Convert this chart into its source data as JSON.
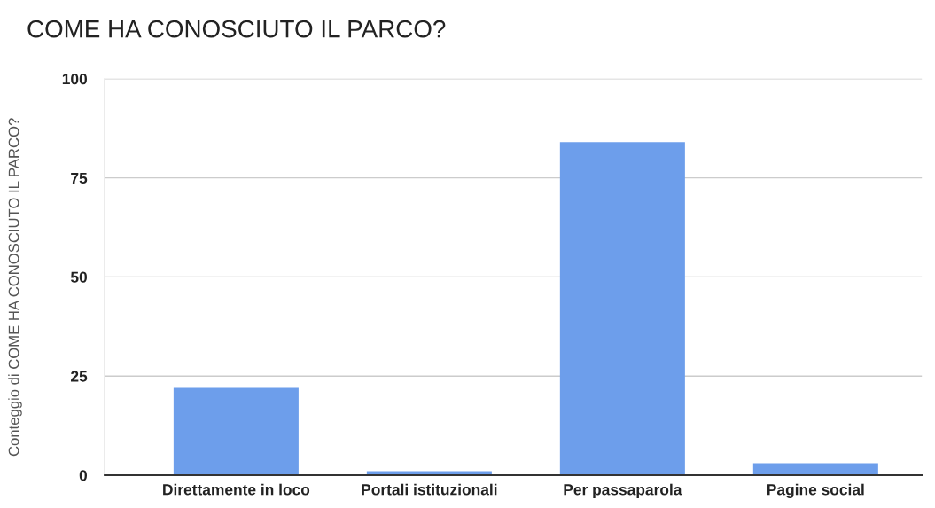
{
  "chart_data": {
    "type": "bar",
    "title": "COME HA CONOSCIUTO IL PARCO?",
    "ylabel": "Conteggio di COME HA CONOSCIUTO IL PARCO?",
    "categories": [
      "Direttamente in loco",
      "Portali istituzionali",
      "Per passaparola",
      "Pagine social"
    ],
    "values": [
      22,
      1,
      84,
      3
    ],
    "color": "#6d9eeb",
    "ylim": [
      0,
      100
    ],
    "yticks": [
      0,
      25,
      50,
      75,
      100
    ],
    "grid": "y"
  }
}
